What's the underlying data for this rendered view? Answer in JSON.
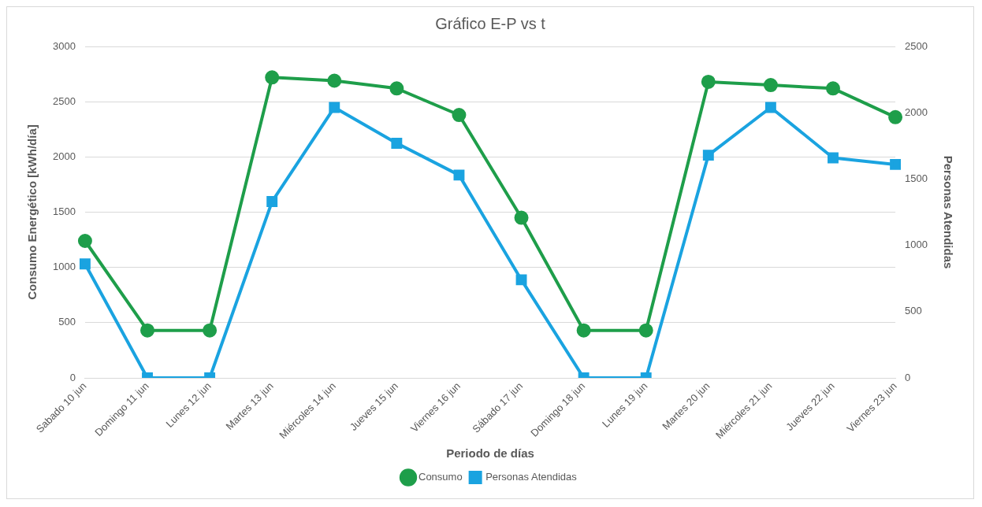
{
  "chart_data": {
    "type": "line",
    "title": "Gráfico E-P vs t",
    "xlabel": "Periodo de días",
    "ylabel": "Consumo Energético [kWh/día]",
    "y2label": "Personas Atendidas",
    "categories": [
      "Sabado 10 jun",
      "Domingo 11 jun",
      "Lunes 12 jun",
      "Martes 13 jun",
      "Miércoles 14 jun",
      "Jueves 15 jun",
      "Viernes 16 jun",
      "Sábado 17 jun",
      "Domingo 18 jun",
      "Lunes 19 jun",
      "Martes 20 jun",
      "Miércoles 21 jun",
      "Jueves 22 jun",
      "Viernes 23 jun"
    ],
    "series": [
      {
        "name": "Consumo",
        "color": "#1e9e4a",
        "marker": "circle",
        "values": [
          1240,
          430,
          430,
          2720,
          2690,
          2620,
          2380,
          1450,
          430,
          430,
          2680,
          2650,
          2620,
          2360
        ]
      },
      {
        "name": "Personas Atendidas",
        "color": "#1aa3e0",
        "marker": "square",
        "axis": "y2",
        "values": [
          860,
          0,
          0,
          1330,
          2040,
          1770,
          1530,
          740,
          0,
          0,
          1680,
          2040,
          1660,
          1610
        ]
      }
    ],
    "ylim": [
      0,
      3000
    ],
    "yticks": [
      0,
      500,
      1000,
      1500,
      2000,
      2500,
      3000
    ],
    "y2lim": [
      0,
      2500
    ],
    "y2ticks": [
      0,
      500,
      1000,
      1500,
      2000,
      2500
    ],
    "grid": "y",
    "legend": "bottom"
  }
}
